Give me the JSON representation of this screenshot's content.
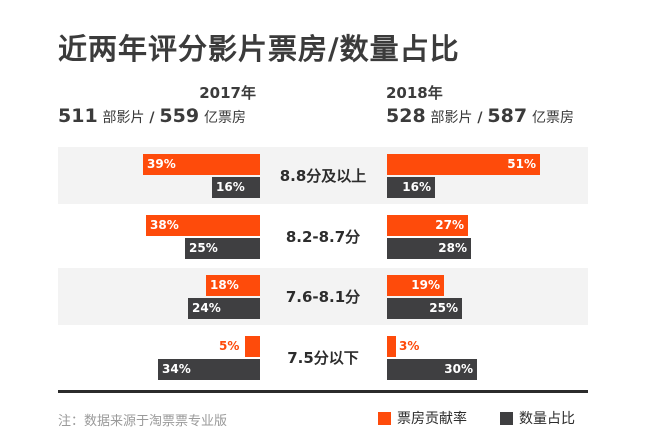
{
  "title": "近两年评分影片票房/数量占比",
  "years": [
    {
      "year": "2017年",
      "films": "511",
      "films_label": "部影片",
      "separator": "/",
      "box_office": "559",
      "box_office_label": "亿票房"
    },
    {
      "year": "2018年",
      "films": "528",
      "films_label": "部影片",
      "separator": "/",
      "box_office": "587",
      "box_office_label": "亿票房"
    }
  ],
  "chart_data": {
    "type": "bar",
    "categories": [
      "8.8分及以上",
      "8.2-8.7分",
      "7.6-8.1分",
      "7.5分以下"
    ],
    "groups": [
      "2017年",
      "2018年"
    ],
    "series": [
      {
        "name": "票房贡献率",
        "color": "#fe4b0b",
        "values": {
          "2017年": [
            39,
            38,
            18,
            5
          ],
          "2018年": [
            51,
            27,
            19,
            3
          ]
        }
      },
      {
        "name": "数量占比",
        "color": "#3f3f41",
        "values": {
          "2017年": [
            16,
            25,
            24,
            34
          ],
          "2018年": [
            16,
            28,
            25,
            30
          ]
        }
      }
    ],
    "unit": "%",
    "orientation": "horizontal-butterfly",
    "xlim": [
      0,
      100
    ]
  },
  "note": "注：数据来源于淘票票专业版",
  "legend": [
    {
      "label": "票房贡献率",
      "color": "#fe4b0b"
    },
    {
      "label": "数量占比",
      "color": "#3f3f41"
    }
  ]
}
